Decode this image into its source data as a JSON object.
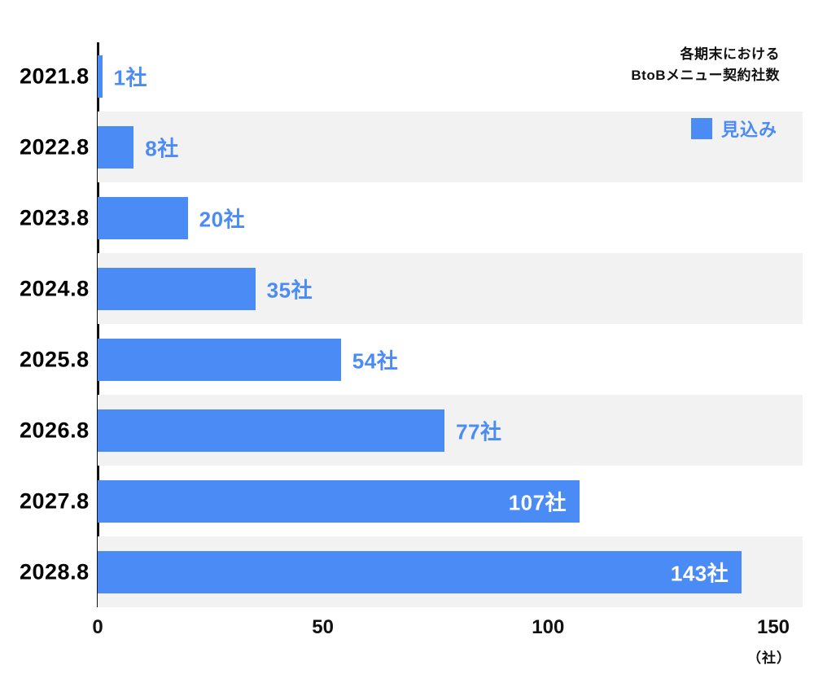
{
  "chart_data": {
    "type": "bar",
    "orientation": "horizontal",
    "title_lines": [
      "各期末における",
      "BtoBメニュー契約社数"
    ],
    "legend": {
      "label": "見込み"
    },
    "categories": [
      "2021.8",
      "2022.8",
      "2023.8",
      "2024.8",
      "2025.8",
      "2026.8",
      "2027.8",
      "2028.8"
    ],
    "values": [
      1,
      8,
      20,
      35,
      54,
      77,
      107,
      143
    ],
    "value_labels": [
      "1社",
      "8社",
      "20社",
      "35社",
      "54社",
      "77社",
      "107社",
      "143社"
    ],
    "xlim": [
      0,
      150
    ],
    "x_ticks": [
      0,
      50,
      100,
      150
    ],
    "x_unit": "（社）",
    "bar_color": "#4b8bf5",
    "stripe_color": "#f2f2f2",
    "grid": false,
    "legend_position": "top-right"
  }
}
